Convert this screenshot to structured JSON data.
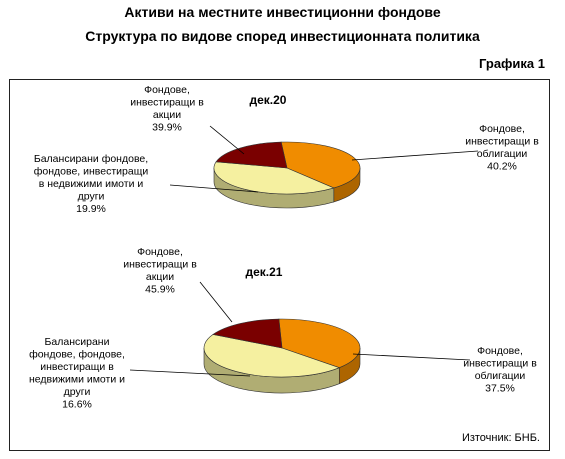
{
  "title": "Активи на местните инвестиционни фондове",
  "subtitle": "Структура по видове според инвестиционната политика",
  "figure_label": "Графика 1",
  "source": "Източник: БНБ.",
  "colors": {
    "equity": "#f5f0a0",
    "bonds": "#f08c00",
    "balanced": "#7a0000"
  },
  "chart_data": [
    {
      "type": "pie",
      "title": "дек.20",
      "categories": [
        "Фондове, инвестиращи в облигации",
        "Фондове, инвестиращи в акции",
        "Балансирани фондове, фондове, инвестиращи в недвижими имоти и други"
      ],
      "values": [
        40.2,
        39.9,
        19.9
      ],
      "labels": [
        [
          "Фондове,",
          "инвестиращи в",
          "облигации",
          "40.2%"
        ],
        [
          "Фондове,",
          "инвестиращи в",
          "акции",
          "39.9%"
        ],
        [
          "Балансирани фондове,",
          "фондове, инвестиращи",
          "в недвижими имоти и",
          "други",
          "19.9%"
        ]
      ]
    },
    {
      "type": "pie",
      "title": "дек.21",
      "categories": [
        "Фондове, инвестиращи в облигации",
        "Фондове, инвестиращи в акции",
        "Балансирани фондове, фондове, инвестиращи в недвижими имоти и други"
      ],
      "values": [
        37.5,
        45.9,
        16.6
      ],
      "labels": [
        [
          "Фондове,",
          "инвестиращи в",
          "облигации",
          "37.5%"
        ],
        [
          "Фондове,",
          "инвестиращи в",
          "акции",
          "45.9%"
        ],
        [
          "Балансирани",
          "фондове, фондове,",
          "инвестиращи в",
          "недвижими имоти и",
          "други",
          "16.6%"
        ]
      ]
    }
  ]
}
